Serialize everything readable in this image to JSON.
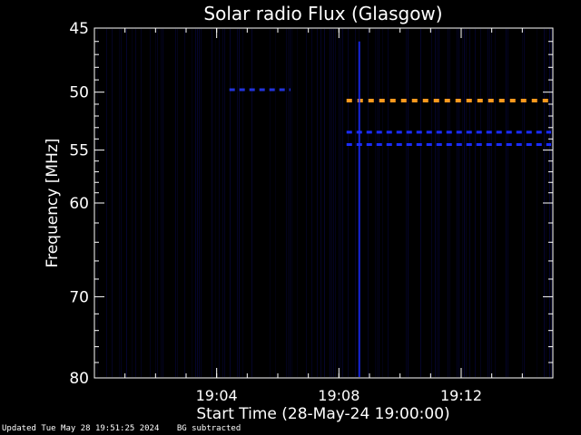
{
  "chart_data": {
    "type": "heatmap",
    "title": "Solar radio Flux (Glasgow)",
    "xlabel": "Start Time (28-May-24 19:00:00)",
    "ylabel": "Frequency [MHz]",
    "xlim": [
      "19:00:00",
      "19:15:00"
    ],
    "ylim": [
      45,
      80
    ],
    "x_ticks": [
      "19:04",
      "19:08",
      "19:12"
    ],
    "y_ticks": [
      45,
      50,
      55,
      60,
      70,
      80
    ],
    "grid": false,
    "colors": {
      "background": "#000000",
      "axes": "#ffffff",
      "orange": "#ff9a1e",
      "blue": "#1a2cff",
      "dark_blue": "#0a0a60"
    },
    "features": [
      {
        "name": "",
        "freq": 49.8,
        "t_start": "19:04:25",
        "t_end": "19:06:25",
        "color": "#2233dd",
        "style": "dashed"
      },
      {
        "name": "",
        "freq": 50.7,
        "t_start": "19:08:15",
        "t_end": "19:15:00",
        "color": "#ff9a1e",
        "style": "dashed"
      },
      {
        "name": "",
        "freq": 53.4,
        "t_start": "19:08:15",
        "t_end": "19:15:00",
        "color": "#1a2cff",
        "style": "dashed"
      },
      {
        "name": "",
        "freq": 54.5,
        "t_start": "19:08:15",
        "t_end": "19:15:00",
        "color": "#1a2cff",
        "style": "dashed"
      }
    ],
    "vertical_features": [
      {
        "time": "19:08:40",
        "f_start": 46,
        "f_end": 80,
        "color": "#1a2cff"
      }
    ]
  },
  "footer": {
    "updated": "Updated Tue May 28 19:51:25 2024",
    "note": "BG subtracted"
  }
}
